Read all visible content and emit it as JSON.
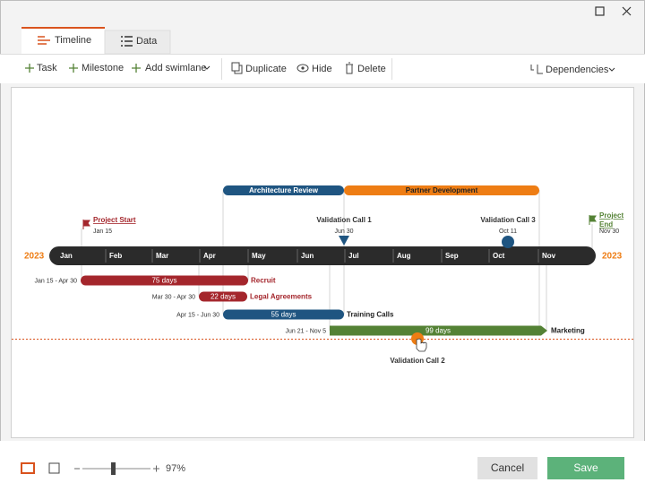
{
  "tabs": [
    "Timeline",
    "Data"
  ],
  "toolbar": {
    "buttons": [
      "Task",
      "Milestone",
      "Add swimlane",
      "Duplicate",
      "Hide",
      "Delete"
    ],
    "dependencies": "Dependencies"
  },
  "timeline": {
    "year_start": "2023",
    "year_end": "2023",
    "months": [
      "Jan",
      "Feb",
      "Mar",
      "Apr",
      "May",
      "Jun",
      "Jul",
      "Aug",
      "Sep",
      "Oct",
      "Nov"
    ],
    "swimlanes": [
      {
        "label": "Architecture Review",
        "color": "#1f5581"
      },
      {
        "label": "Partner Development",
        "color": "#ee7d14"
      }
    ],
    "milestones": [
      {
        "label": "Project Start",
        "date": "Jan 15",
        "color": "#a4262c"
      },
      {
        "label": "Validation Call 1",
        "date": "Jun 30",
        "color": "#1f5581"
      },
      {
        "label": "Validation Call 3",
        "date": "Oct 11",
        "color": "#1f5581"
      },
      {
        "label": "Project End",
        "date": "Nov 30",
        "color": "#548235"
      },
      {
        "label": "Validation Call 2",
        "color": "#ee7d14"
      }
    ],
    "tasks": [
      {
        "range": "Jan 15 - Apr 30",
        "duration": "75 days",
        "label": "Recruit",
        "color": "#a4262c",
        "label_color": "#a4262c"
      },
      {
        "range": "Mar 30 - Apr 30",
        "duration": "22 days",
        "label": "Legal Agreements",
        "color": "#a4262c",
        "label_color": "#a4262c"
      },
      {
        "range": "Apr 15 - Jun 30",
        "duration": "55 days",
        "label": "Training Calls",
        "color": "#1f5581",
        "label_color": "#222222"
      },
      {
        "range": "Jun 21 - Nov 5",
        "duration": "99 days",
        "label": "Marketing",
        "color": "#548235",
        "label_color": "#222222"
      }
    ]
  },
  "footer": {
    "zoom": "97%",
    "cancel": "Cancel",
    "save": "Save"
  }
}
